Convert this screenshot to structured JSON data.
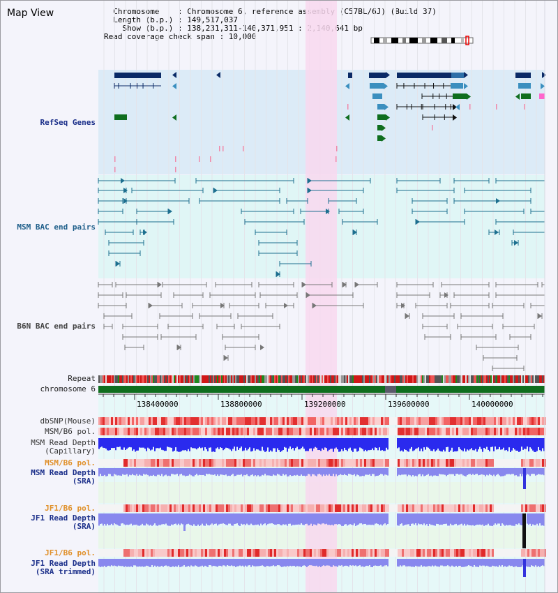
{
  "window": {
    "title": "Map View"
  },
  "info": {
    "lines": [
      "  Chromosome    : Chromosome 6, reference assembly (C57BL/6J) (Build 37)",
      "  Length (b.p.) : 149,517,037",
      "    Show (b.p.) : 138,231,311-140,371,951 : 2,140,641 bp",
      "Read coverage check span : 10,000"
    ]
  },
  "tracks": {
    "refseq": "RefSeq Genes",
    "msm_bac": "MSM BAC end pairs",
    "b6n_bac": "B6N BAC end pairs",
    "repeat": "Repeat",
    "chromosome": "chromosome 6",
    "dbsnp": "dbSNP(Mouse)",
    "msm_b6_pol": "MSM/B6 pol.",
    "msm_depth_cap_1": "MSM Read Depth",
    "msm_depth_cap_2": "(Capillary)",
    "msm_b6_pol_sra": "MSM/B6 pol.",
    "msm_depth_sra_1": "MSM Read Depth",
    "msm_depth_sra_2": "(SRA)",
    "jf1_b6_pol": "JF1/B6 pol.",
    "jf1_depth_1": "JF1 Read Depth",
    "jf1_depth_2": "(SRA)",
    "jf1_b6_pol_trim": "JF1/B6 pol.",
    "jf1_depth_trim_1": "JF1 Read Depth",
    "jf1_depth_trim_2": "(SRA trimmed)"
  },
  "axis": {
    "ticks": [
      "138400000",
      "138800000",
      "139200000",
      "139600000",
      "140000000"
    ]
  },
  "colors": {
    "refseq_bg": "#dcebf7",
    "msm_bg": "#e0f6f6",
    "highlight": "#f8d8ef",
    "gene_dark": "#0b2a66",
    "gene_mid": "#3b8fbf",
    "gene_green": "#0f6e1e",
    "bac_teal": "#1d6f8f",
    "bac_gray": "#777777",
    "chromosome_green": "#0f6e1e",
    "depth_blue": "#2a2aee",
    "depth_light": "#8888ee"
  }
}
